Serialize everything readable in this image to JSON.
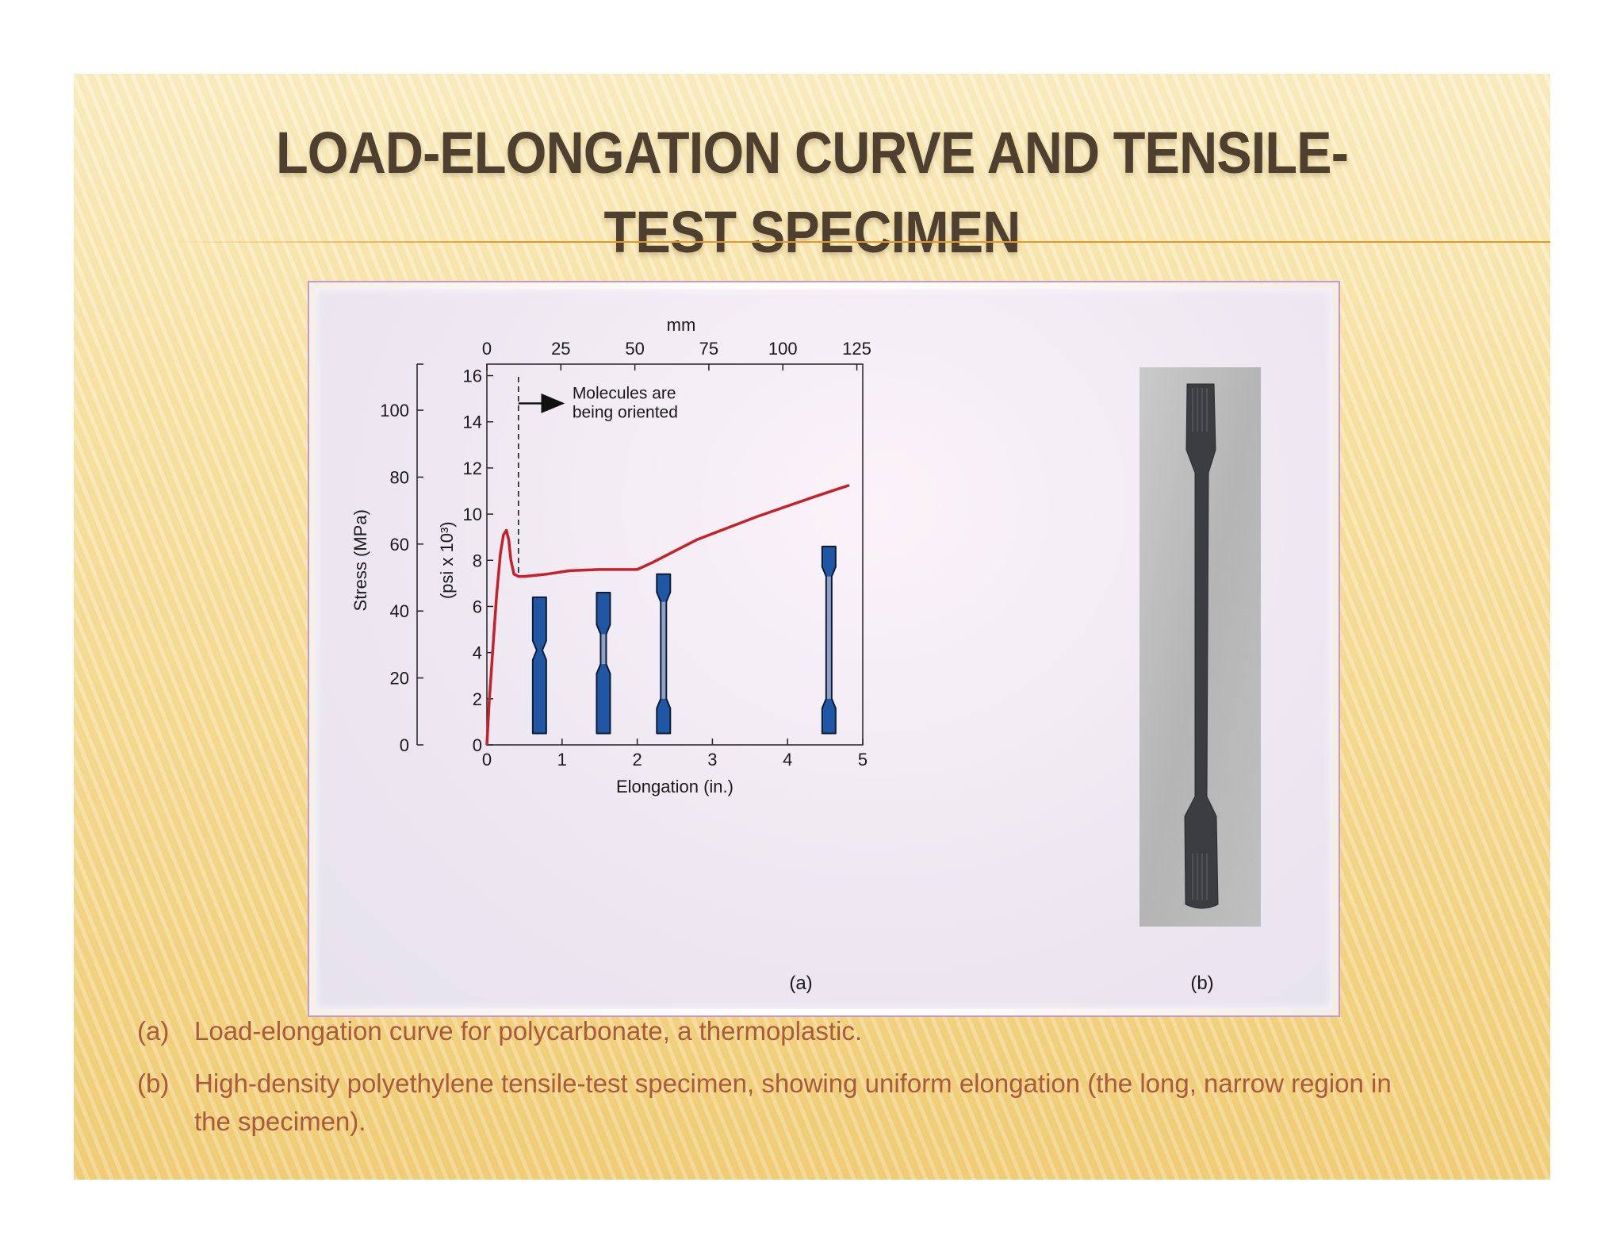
{
  "slide": {
    "title": "Load-Elongation Curve and Tensile-Test Specimen",
    "captions": [
      {
        "marker": "(a)",
        "text": "Load-elongation curve for polycarbonate, a thermoplastic."
      },
      {
        "marker": "(b)",
        "text": "High-density polyethylene tensile-test specimen, showing uniform elongation (the long, narrow region in the specimen)."
      }
    ]
  },
  "colors": {
    "curve": "#c8202a",
    "specimen": "#1f57a4",
    "specimen_neck": "#8ea2c8",
    "accent": "#e2982e"
  },
  "chart_data": {
    "type": "line",
    "panel_label": "(a)",
    "xlabel": "Elongation (in.)",
    "x_top_label": "mm",
    "ylabel_left": "Stress (MPa)",
    "ylabel_inner": "(psi x 10³)",
    "xlim": [
      0,
      5
    ],
    "ylim": [
      0,
      16.5
    ],
    "x_ticks": [
      "0",
      "1",
      "2",
      "3",
      "4",
      "5"
    ],
    "x_top_ticks": [
      "0",
      "25",
      "50",
      "75",
      "100",
      "125"
    ],
    "y_ticks": [
      "0",
      "2",
      "4",
      "6",
      "8",
      "10",
      "12",
      "14",
      "16"
    ],
    "y_mpa_ticks": [
      "0",
      "20",
      "40",
      "60",
      "80",
      "100"
    ],
    "series": [
      {
        "points": [
          [
            0,
            0
          ],
          [
            0.03,
            1.8
          ],
          [
            0.08,
            4.2
          ],
          [
            0.13,
            6.5
          ],
          [
            0.18,
            8.3
          ],
          [
            0.22,
            9.1
          ],
          [
            0.26,
            9.3
          ],
          [
            0.29,
            8.9
          ],
          [
            0.32,
            8.0
          ],
          [
            0.36,
            7.4
          ],
          [
            0.42,
            7.3
          ],
          [
            0.5,
            7.3
          ],
          [
            0.8,
            7.4
          ],
          [
            1.1,
            7.55
          ],
          [
            1.5,
            7.6
          ],
          [
            1.8,
            7.6
          ],
          [
            2.0,
            7.6
          ],
          [
            2.2,
            7.9
          ],
          [
            2.5,
            8.4
          ],
          [
            2.8,
            8.9
          ],
          [
            3.2,
            9.4
          ],
          [
            3.6,
            9.9
          ],
          [
            4.0,
            10.35
          ],
          [
            4.4,
            10.8
          ],
          [
            4.82,
            11.25
          ]
        ]
      }
    ],
    "annotation": {
      "lines": [
        "Molecules are",
        "being oriented"
      ],
      "x": 0.42
    },
    "specimens": [
      {
        "x": 0.7,
        "top": 6.4,
        "neck_start": 4.1,
        "neck_end": 4.1
      },
      {
        "x": 1.55,
        "top": 6.6,
        "neck_start": 3.5,
        "neck_end": 4.8
      },
      {
        "x": 2.35,
        "top": 7.4,
        "neck_start": 2.0,
        "neck_end": 6.2
      },
      {
        "x": 4.55,
        "top": 8.6,
        "neck_start": 2.0,
        "neck_end": 7.3
      }
    ]
  },
  "photo_label": "(b)"
}
